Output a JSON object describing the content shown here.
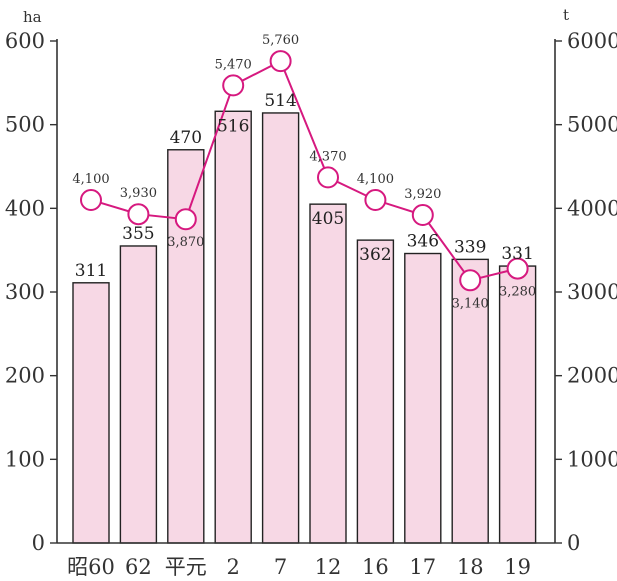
{
  "chart_data": {
    "type": "bar",
    "categories": [
      "昭60",
      "62",
      "平元",
      "2",
      "7",
      "12",
      "16",
      "17",
      "18",
      "19"
    ],
    "series": [
      {
        "type": "bar",
        "axis": "left",
        "values": [
          311,
          355,
          470,
          516,
          514,
          405,
          362,
          346,
          339,
          331
        ],
        "labels": [
          "311",
          "355",
          "470",
          "516",
          "514",
          "405",
          "362",
          "346",
          "339",
          "331"
        ]
      },
      {
        "type": "line",
        "axis": "right",
        "values": [
          4100,
          3930,
          3870,
          5470,
          5760,
          4370,
          4100,
          3920,
          3140,
          3280
        ],
        "labels": [
          "4,100",
          "3,930",
          "3,870",
          "5,470",
          "5,760",
          "4,370",
          "4,100",
          "3,920",
          "3,140",
          "3,280"
        ]
      }
    ],
    "y_left": {
      "unit": "ha",
      "ylim": [
        0,
        600
      ],
      "ticks": [
        "0",
        "100",
        "200",
        "300",
        "400",
        "500",
        "600"
      ]
    },
    "y_right": {
      "unit": "t",
      "ylim": [
        0,
        6000
      ],
      "ticks": [
        "0",
        "1000",
        "2000",
        "3000",
        "4000",
        "5000",
        "6000"
      ]
    },
    "grid": false,
    "colors": {
      "bar_fill": "#f7d8e5",
      "bar_stroke": "#222222",
      "line": "#d6197f",
      "axis": "#333333"
    }
  }
}
